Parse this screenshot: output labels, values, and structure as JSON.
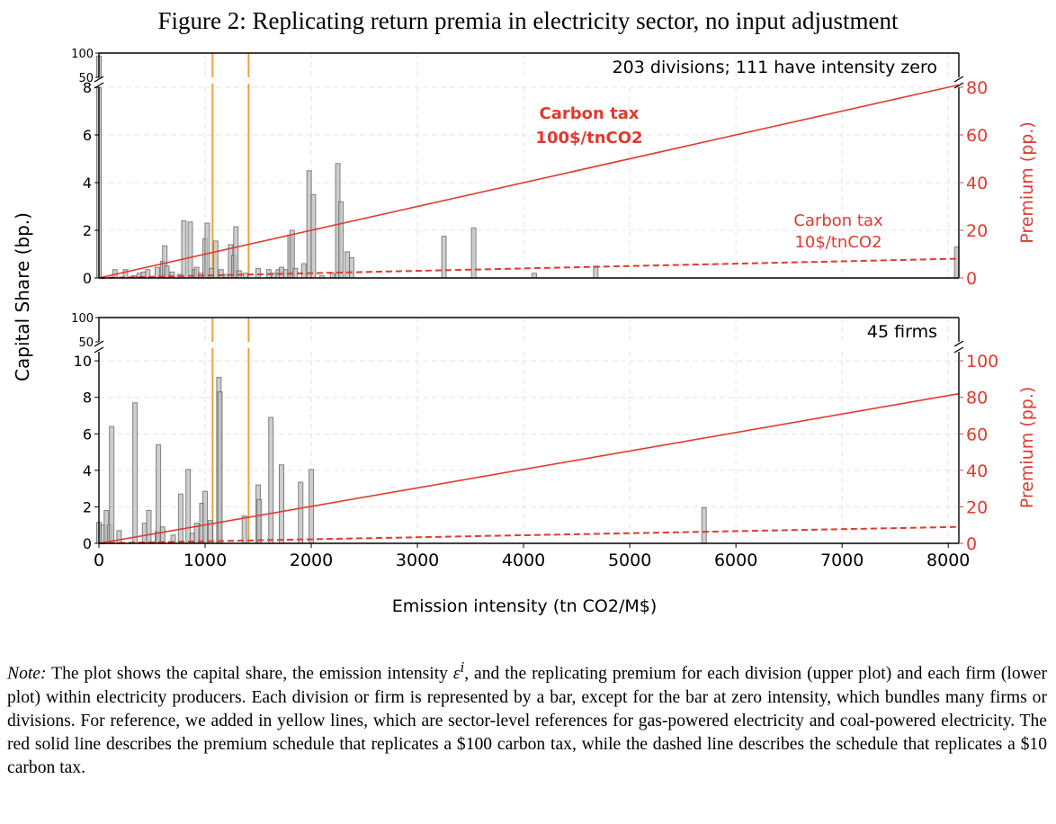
{
  "figure": {
    "title": "Figure 2: Replicating return premia in electricity sector, no input adjustment",
    "y_label": "Capital Share (bp.)",
    "x_label": "Emission intensity (tn CO2/M$)",
    "right_label": "Premium (pp.)"
  },
  "note": {
    "label": "Note:",
    "before_eps": " The plot shows the capital share, the emission intensity ",
    "eps": "ε",
    "eps_sup": "i",
    "after_eps": ", and the replicating premium for each division (upper plot) and each firm (lower plot) within electricity producers. Each division or firm is represented by a bar, except for the bar at zero intensity, which bundles many firms or divisions. For reference, we added in yellow lines, which are sector-level references for gas-powered electricity and coal-powered electricity. The red solid line describes the premium schedule that replicates a $100 carbon tax, while the dashed line describes the schedule that replicates a $10 carbon tax."
  },
  "colors": {
    "bar_fill": "#bdbdbd",
    "bar_stroke": "#555555",
    "premium": "#e03a2f",
    "reference": "#f0a040",
    "grid": "#e4e4e4"
  },
  "chart_data": [
    {
      "type": "bar",
      "panel": "upper",
      "annotation": "203 divisions; 111 have intensity zero",
      "xlim": [
        0,
        8100
      ],
      "x_ticks": [
        0,
        1000,
        2000,
        3000,
        4000,
        5000,
        6000,
        7000,
        8000
      ],
      "ylim_break": [
        50,
        100
      ],
      "ylim": [
        0,
        8
      ],
      "y_ticks": [
        0,
        2,
        4,
        6,
        8
      ],
      "y_break_ticks": [
        50,
        100
      ],
      "premium_ylim": [
        0,
        80
      ],
      "premium_ticks": [
        0,
        20,
        40,
        60,
        80
      ],
      "reference_lines_x": [
        1070,
        1410
      ],
      "bars": [
        {
          "x": 0,
          "y": 94
        },
        {
          "x": 150,
          "y": 0.35
        },
        {
          "x": 250,
          "y": 0.35
        },
        {
          "x": 330,
          "y": 0.1
        },
        {
          "x": 380,
          "y": 0.2
        },
        {
          "x": 420,
          "y": 0.25
        },
        {
          "x": 460,
          "y": 0.35
        },
        {
          "x": 550,
          "y": 0.45
        },
        {
          "x": 600,
          "y": 0.7
        },
        {
          "x": 620,
          "y": 1.35
        },
        {
          "x": 640,
          "y": 0.5
        },
        {
          "x": 690,
          "y": 0.25
        },
        {
          "x": 760,
          "y": 0.15
        },
        {
          "x": 800,
          "y": 2.4
        },
        {
          "x": 860,
          "y": 2.35
        },
        {
          "x": 900,
          "y": 0.35
        },
        {
          "x": 920,
          "y": 0.45
        },
        {
          "x": 960,
          "y": 0.2
        },
        {
          "x": 1000,
          "y": 1.65
        },
        {
          "x": 1020,
          "y": 2.3
        },
        {
          "x": 1060,
          "y": 0.4
        },
        {
          "x": 1100,
          "y": 1.55
        },
        {
          "x": 1150,
          "y": 0.35
        },
        {
          "x": 1200,
          "y": 0.15
        },
        {
          "x": 1240,
          "y": 1.4
        },
        {
          "x": 1270,
          "y": 0.95
        },
        {
          "x": 1290,
          "y": 2.15
        },
        {
          "x": 1320,
          "y": 0.3
        },
        {
          "x": 1380,
          "y": 0.2
        },
        {
          "x": 1500,
          "y": 0.4
        },
        {
          "x": 1600,
          "y": 0.35
        },
        {
          "x": 1650,
          "y": 0.2
        },
        {
          "x": 1690,
          "y": 0.35
        },
        {
          "x": 1720,
          "y": 0.45
        },
        {
          "x": 1760,
          "y": 0.35
        },
        {
          "x": 1800,
          "y": 1.8
        },
        {
          "x": 1820,
          "y": 2.0
        },
        {
          "x": 1850,
          "y": 0.4
        },
        {
          "x": 1930,
          "y": 0.6
        },
        {
          "x": 1980,
          "y": 4.5
        },
        {
          "x": 2020,
          "y": 3.5
        },
        {
          "x": 2100,
          "y": 0.1
        },
        {
          "x": 2200,
          "y": 0.2
        },
        {
          "x": 2250,
          "y": 4.8
        },
        {
          "x": 2280,
          "y": 3.2
        },
        {
          "x": 2340,
          "y": 1.1
        },
        {
          "x": 2380,
          "y": 0.85
        },
        {
          "x": 3250,
          "y": 1.75
        },
        {
          "x": 3530,
          "y": 2.1
        },
        {
          "x": 4100,
          "y": 0.2
        },
        {
          "x": 4680,
          "y": 0.5
        },
        {
          "x": 8080,
          "y": 1.3
        }
      ],
      "premium_lines": [
        {
          "label": "Carbon tax\n100$/tnCO2",
          "style": "solid",
          "x": [
            0,
            8100
          ],
          "y": [
            0,
            81
          ]
        },
        {
          "label": "Carbon tax\n10$/tnCO2",
          "style": "dashed",
          "x": [
            0,
            8100
          ],
          "y": [
            0,
            8.1
          ]
        }
      ]
    },
    {
      "type": "bar",
      "panel": "lower",
      "annotation": "45 firms",
      "xlim": [
        0,
        8100
      ],
      "x_ticks": [
        0,
        1000,
        2000,
        3000,
        4000,
        5000,
        6000,
        7000,
        8000
      ],
      "ylim_break": [
        50,
        100
      ],
      "ylim": [
        0,
        10.5
      ],
      "y_ticks": [
        0,
        2,
        4,
        6,
        8,
        10
      ],
      "y_break_ticks": [
        50,
        100
      ],
      "premium_ylim": [
        0,
        105
      ],
      "premium_ticks": [
        0,
        20,
        40,
        60,
        80,
        100
      ],
      "reference_lines_x": [
        1070,
        1410
      ],
      "bars": [
        {
          "x": 0,
          "y": 1.15
        },
        {
          "x": 40,
          "y": 1.0
        },
        {
          "x": 70,
          "y": 1.8
        },
        {
          "x": 100,
          "y": 1.0
        },
        {
          "x": 120,
          "y": 6.4
        },
        {
          "x": 190,
          "y": 0.7
        },
        {
          "x": 340,
          "y": 7.7
        },
        {
          "x": 430,
          "y": 1.1
        },
        {
          "x": 470,
          "y": 1.8
        },
        {
          "x": 550,
          "y": 0.65
        },
        {
          "x": 560,
          "y": 5.4
        },
        {
          "x": 600,
          "y": 0.9
        },
        {
          "x": 700,
          "y": 0.45
        },
        {
          "x": 770,
          "y": 2.7
        },
        {
          "x": 840,
          "y": 4.05
        },
        {
          "x": 880,
          "y": 0.55
        },
        {
          "x": 920,
          "y": 1.1
        },
        {
          "x": 970,
          "y": 2.2
        },
        {
          "x": 1000,
          "y": 2.85
        },
        {
          "x": 1050,
          "y": 1.25
        },
        {
          "x": 1130,
          "y": 9.1
        },
        {
          "x": 1140,
          "y": 8.3
        },
        {
          "x": 1370,
          "y": 1.5
        },
        {
          "x": 1500,
          "y": 3.2
        },
        {
          "x": 1510,
          "y": 2.4
        },
        {
          "x": 1620,
          "y": 6.9
        },
        {
          "x": 1720,
          "y": 4.3
        },
        {
          "x": 1900,
          "y": 3.35
        },
        {
          "x": 2000,
          "y": 4.05
        },
        {
          "x": 5700,
          "y": 1.95
        }
      ],
      "premium_lines": [
        {
          "label": "",
          "style": "solid",
          "x": [
            0,
            8100
          ],
          "y": [
            0,
            82
          ]
        },
        {
          "label": "",
          "style": "dashed",
          "x": [
            0,
            8100
          ],
          "y": [
            0,
            9
          ]
        }
      ]
    }
  ]
}
